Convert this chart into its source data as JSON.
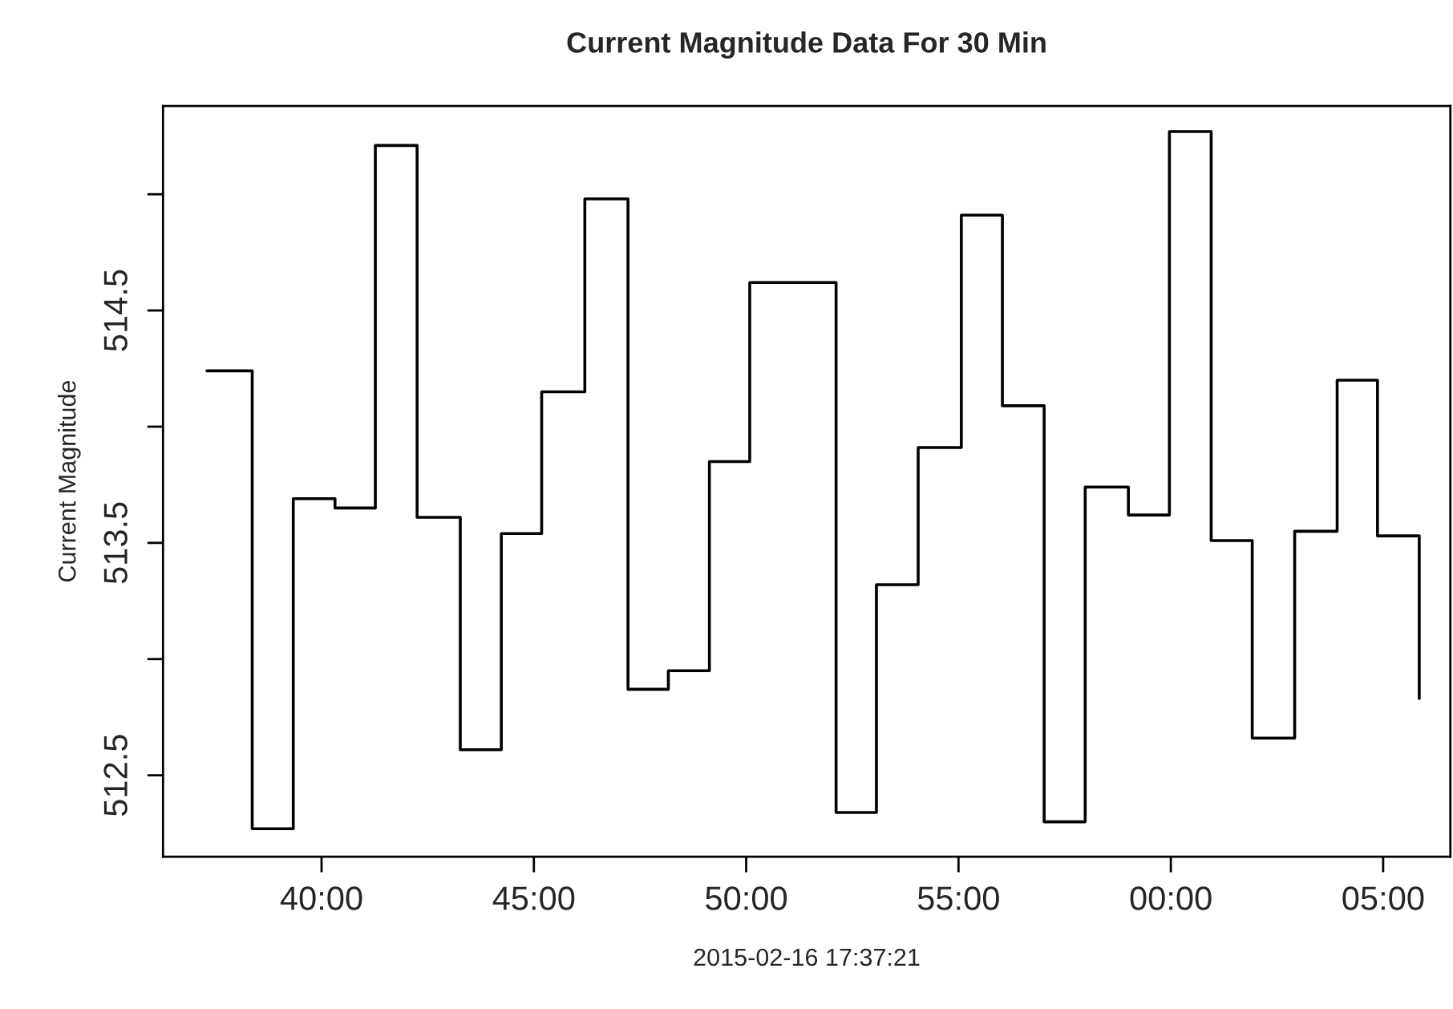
{
  "chart_data": {
    "type": "step",
    "title": "Current Magnitude Data For 30 Min",
    "xlabel": "2015-02-16 17:37:21",
    "ylabel": "Current Magnitude",
    "x": [
      "2015-02-16T17:37:18",
      "2015-02-16T17:38:22",
      "2015-02-16T17:39:20",
      "2015-02-16T17:40:19",
      "2015-02-16T17:41:16",
      "2015-02-16T17:42:15",
      "2015-02-16T17:43:16",
      "2015-02-16T17:44:14",
      "2015-02-16T17:45:11",
      "2015-02-16T17:46:12",
      "2015-02-16T17:47:13",
      "2015-02-16T17:48:10",
      "2015-02-16T17:49:08",
      "2015-02-16T17:50:05",
      "2015-02-16T17:51:06",
      "2015-02-16T17:52:07",
      "2015-02-16T17:53:04",
      "2015-02-16T17:54:03",
      "2015-02-16T17:55:04",
      "2015-02-16T17:56:02",
      "2015-02-16T17:57:01",
      "2015-02-16T17:57:59",
      "2015-02-16T17:59:00",
      "2015-02-16T17:59:58",
      "2015-02-16T18:00:57",
      "2015-02-16T18:01:55",
      "2015-02-16T18:02:55",
      "2015-02-16T18:03:55",
      "2015-02-16T18:04:52",
      "2015-02-16T18:05:51"
    ],
    "series": [
      {
        "color": "#000000",
        "values": [
          514.24,
          512.27,
          513.69,
          513.65,
          515.21,
          513.61,
          512.61,
          513.54,
          514.15,
          514.98,
          512.87,
          512.95,
          513.85,
          514.62,
          514.62,
          512.34,
          513.32,
          513.91,
          514.91,
          514.09,
          512.3,
          513.74,
          513.62,
          515.27,
          513.51,
          512.66,
          513.55,
          514.2,
          513.53,
          512.83
        ]
      }
    ],
    "xlim": [
      "2015-02-16T17:36:16",
      "2015-02-16T18:06:35"
    ],
    "ylim": [
      512.15,
      515.38
    ],
    "xticks": [
      {
        "value": "2015-02-16T17:40",
        "label": "40:00"
      },
      {
        "value": "2015-02-16T17:45",
        "label": "45:00"
      },
      {
        "value": "2015-02-16T17:50",
        "label": "50:00"
      },
      {
        "value": "2015-02-16T17:55",
        "label": "55:00"
      },
      {
        "value": "2015-02-16T18:00",
        "label": "00:00"
      },
      {
        "value": "2015-02-16T18:05",
        "label": "05:00"
      }
    ],
    "yticks": [
      512.5,
      {
        "value": 513,
        "label": null
      },
      513.5,
      {
        "value": 514,
        "label": null
      },
      514.5,
      {
        "value": 515,
        "label": null
      }
    ],
    "grid": false,
    "legend": false,
    "line_style": "solid"
  }
}
